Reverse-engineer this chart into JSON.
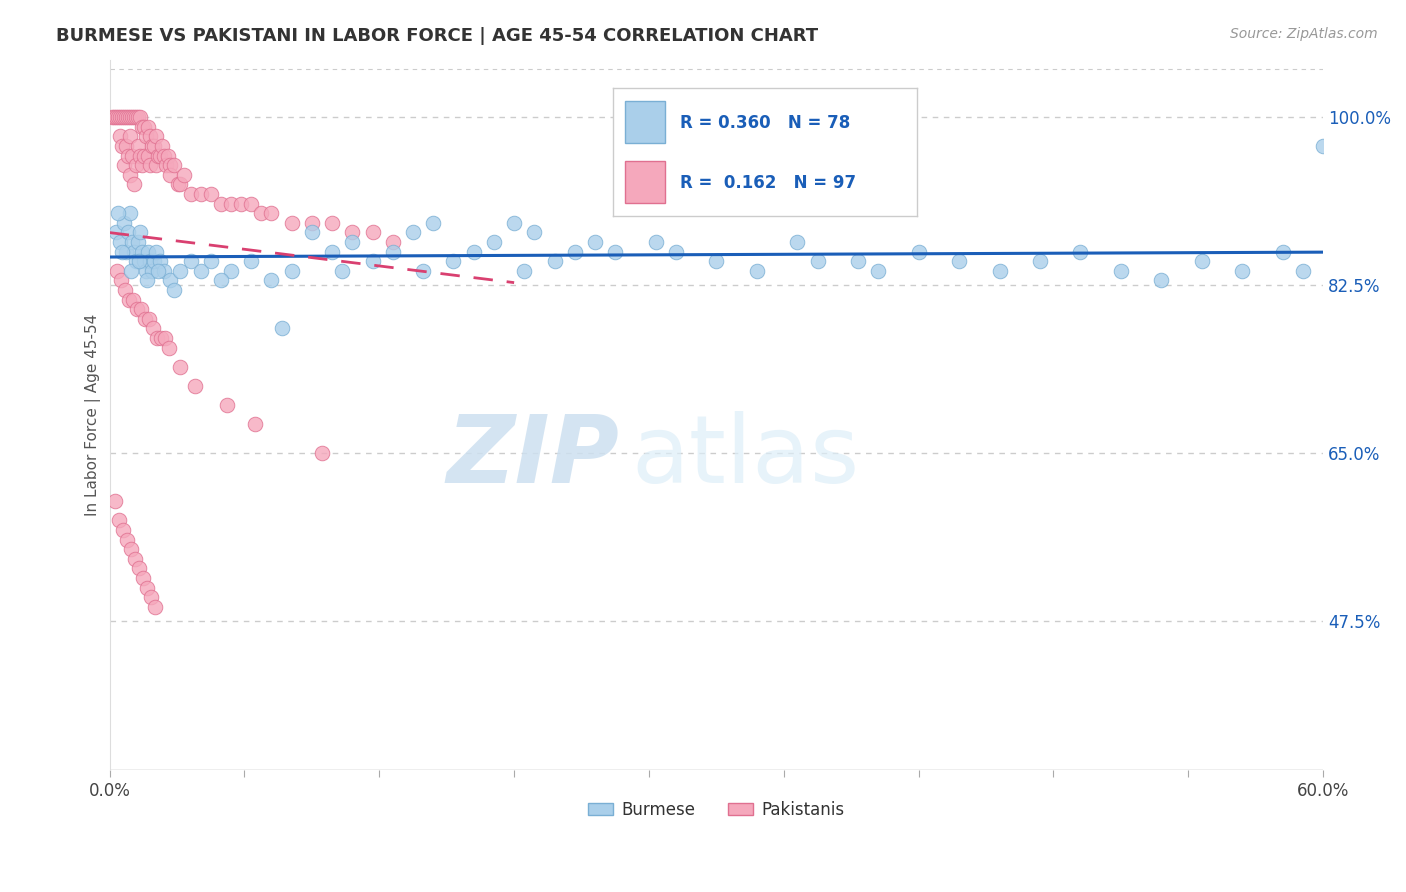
{
  "title": "BURMESE VS PAKISTANI IN LABOR FORCE | AGE 45-54 CORRELATION CHART",
  "source": "Source: ZipAtlas.com",
  "ylabel": "In Labor Force | Age 45-54",
  "xlim": [
    0.0,
    60.0
  ],
  "ylim": [
    32.0,
    106.0
  ],
  "y_ticks_right": [
    47.5,
    65.0,
    82.5,
    100.0
  ],
  "y_tick_labels_right": [
    "47.5%",
    "65.0%",
    "82.5%",
    "100.0%"
  ],
  "legend_blue_R": "0.360",
  "legend_blue_N": "78",
  "legend_pink_R": "0.162",
  "legend_pink_N": "97",
  "legend_labels": [
    "Burmese",
    "Pakistanis"
  ],
  "watermark_zip": "ZIP",
  "watermark_atlas": "atlas",
  "background_color": "#ffffff",
  "blue_color": "#aacfea",
  "blue_edge": "#7aafd4",
  "pink_color": "#f5a8bc",
  "pink_edge": "#e07090",
  "blue_line_color": "#1a5eb8",
  "pink_line_color": "#d94070",
  "grid_color": "#cccccc",
  "title_color": "#333333",
  "source_color": "#999999",
  "blue_scatter_x": [
    0.3,
    0.5,
    0.7,
    0.8,
    0.9,
    1.0,
    1.1,
    1.2,
    1.3,
    1.4,
    1.5,
    1.6,
    1.7,
    1.8,
    1.9,
    2.0,
    2.1,
    2.2,
    2.3,
    2.5,
    2.7,
    3.0,
    3.5,
    4.0,
    4.5,
    5.0,
    6.0,
    7.0,
    8.0,
    9.0,
    10.0,
    11.0,
    12.0,
    13.0,
    14.0,
    15.0,
    16.0,
    17.0,
    18.0,
    19.0,
    20.0,
    21.0,
    22.0,
    23.0,
    24.0,
    25.0,
    27.0,
    28.0,
    30.0,
    32.0,
    34.0,
    35.0,
    37.0,
    38.0,
    40.0,
    42.0,
    44.0,
    46.0,
    48.0,
    50.0,
    52.0,
    54.0,
    56.0,
    58.0,
    59.0,
    60.0,
    0.4,
    0.6,
    1.05,
    1.45,
    1.85,
    2.4,
    3.2,
    5.5,
    8.5,
    11.5,
    15.5,
    20.5
  ],
  "blue_scatter_y": [
    88,
    87,
    89,
    86,
    88,
    90,
    87,
    86,
    85,
    87,
    88,
    86,
    85,
    84,
    86,
    85,
    84,
    85,
    86,
    85,
    84,
    83,
    84,
    85,
    84,
    85,
    84,
    85,
    83,
    84,
    88,
    86,
    87,
    85,
    86,
    88,
    89,
    85,
    86,
    87,
    89,
    88,
    85,
    86,
    87,
    86,
    87,
    86,
    85,
    84,
    87,
    85,
    85,
    84,
    86,
    85,
    84,
    85,
    86,
    84,
    83,
    85,
    84,
    86,
    84,
    97,
    90,
    86,
    84,
    85,
    83,
    84,
    82,
    83,
    78,
    84,
    84,
    84
  ],
  "pink_scatter_x": [
    0.1,
    0.2,
    0.3,
    0.4,
    0.5,
    0.5,
    0.6,
    0.6,
    0.7,
    0.7,
    0.8,
    0.8,
    0.9,
    0.9,
    1.0,
    1.0,
    1.0,
    1.1,
    1.1,
    1.2,
    1.2,
    1.3,
    1.3,
    1.4,
    1.4,
    1.5,
    1.5,
    1.6,
    1.6,
    1.7,
    1.7,
    1.8,
    1.9,
    1.9,
    2.0,
    2.0,
    2.1,
    2.2,
    2.3,
    2.3,
    2.4,
    2.5,
    2.6,
    2.7,
    2.8,
    2.9,
    3.0,
    3.0,
    3.2,
    3.4,
    3.5,
    3.7,
    4.0,
    4.5,
    5.0,
    5.5,
    6.0,
    6.5,
    7.0,
    7.5,
    8.0,
    9.0,
    10.0,
    11.0,
    12.0,
    13.0,
    14.0,
    0.35,
    0.55,
    0.75,
    0.95,
    1.15,
    1.35,
    1.55,
    1.75,
    1.95,
    2.15,
    2.35,
    2.55,
    2.75,
    2.95,
    3.5,
    4.2,
    5.8,
    7.2,
    10.5,
    0.25,
    0.45,
    0.65,
    0.85,
    1.05,
    1.25,
    1.45,
    1.65,
    1.85,
    2.05,
    2.25
  ],
  "pink_scatter_y": [
    100,
    100,
    100,
    100,
    100,
    98,
    100,
    97,
    100,
    95,
    100,
    97,
    100,
    96,
    100,
    98,
    94,
    100,
    96,
    100,
    93,
    100,
    95,
    100,
    97,
    100,
    96,
    99,
    95,
    99,
    96,
    98,
    99,
    96,
    98,
    95,
    97,
    97,
    98,
    95,
    96,
    96,
    97,
    96,
    95,
    96,
    95,
    94,
    95,
    93,
    93,
    94,
    92,
    92,
    92,
    91,
    91,
    91,
    91,
    90,
    90,
    89,
    89,
    89,
    88,
    88,
    87,
    84,
    83,
    82,
    81,
    81,
    80,
    80,
    79,
    79,
    78,
    77,
    77,
    77,
    76,
    74,
    72,
    70,
    68,
    65,
    60,
    58,
    57,
    56,
    55,
    54,
    53,
    52,
    51,
    50,
    49
  ]
}
